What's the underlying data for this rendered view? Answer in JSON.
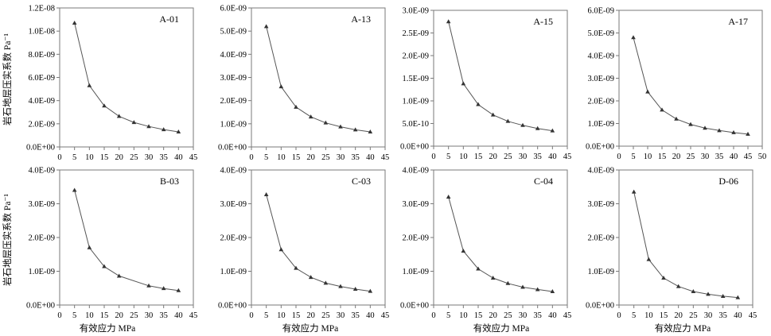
{
  "figure": {
    "ylabel": "岩石地层压实系数 Pa⁻¹",
    "xlabel": "有效应力 MPa"
  },
  "chart_data": [
    {
      "type": "line",
      "label": "A-01",
      "x": [
        5,
        10,
        15,
        20,
        25,
        30,
        35,
        40
      ],
      "y": [
        1.07e-08,
        5.3e-09,
        3.55e-09,
        2.65e-09,
        2.12e-09,
        1.77e-09,
        1.5e-09,
        1.3e-09
      ],
      "xlim": [
        0,
        45
      ],
      "xticks": [
        0,
        5,
        10,
        15,
        20,
        25,
        30,
        35,
        40,
        45
      ],
      "ylim": [
        0,
        1.2e-08
      ],
      "yticks": [
        0,
        2e-09,
        4e-09,
        6e-09,
        8e-09,
        1e-08,
        1.2e-08
      ],
      "ytick_labels": [
        "0.0E+00",
        "2.0E-09",
        "4.0E-09",
        "6.0E-09",
        "8.0E-09",
        "1.0E-08",
        "1.2E-08"
      ],
      "marker": "triangle",
      "color": "#555555"
    },
    {
      "type": "line",
      "label": "A-13",
      "x": [
        5,
        10,
        15,
        20,
        25,
        30,
        35,
        40
      ],
      "y": [
        5.2e-09,
        2.6e-09,
        1.72e-09,
        1.3e-09,
        1.04e-09,
        8.7e-10,
        7.4e-10,
        6.5e-10
      ],
      "xlim": [
        0,
        45
      ],
      "xticks": [
        0,
        5,
        10,
        15,
        20,
        25,
        30,
        35,
        40,
        45
      ],
      "ylim": [
        0,
        6e-09
      ],
      "yticks": [
        0,
        1e-09,
        2e-09,
        3e-09,
        4e-09,
        5e-09,
        6e-09
      ],
      "ytick_labels": [
        "0.0E+00",
        "1.0E-09",
        "2.0E-09",
        "3.0E-09",
        "4.0E-09",
        "5.0E-09",
        "6.0E-09"
      ],
      "marker": "triangle",
      "color": "#555555"
    },
    {
      "type": "line",
      "label": "A-15",
      "x": [
        5,
        10,
        15,
        20,
        25,
        30,
        35,
        40
      ],
      "y": [
        2.75e-09,
        1.38e-09,
        9.2e-10,
        6.9e-10,
        5.5e-10,
        4.6e-10,
        3.9e-10,
        3.4e-10
      ],
      "xlim": [
        0,
        45
      ],
      "xticks": [
        0,
        5,
        10,
        15,
        20,
        25,
        30,
        35,
        40,
        45
      ],
      "ylim": [
        0,
        3e-09
      ],
      "yticks": [
        0,
        5e-10,
        1e-09,
        1.5e-09,
        2e-09,
        2.5e-09,
        3e-09
      ],
      "ytick_labels": [
        "0.0E+00",
        "5.0E-10",
        "1.0E-09",
        "1.5E-09",
        "2.0E-09",
        "2.5E-09",
        "3.0E-09"
      ],
      "marker": "triangle",
      "color": "#555555"
    },
    {
      "type": "line",
      "label": "A-17",
      "x": [
        5,
        10,
        15,
        20,
        25,
        30,
        35,
        40,
        45
      ],
      "y": [
        4.8e-09,
        2.4e-09,
        1.6e-09,
        1.2e-09,
        9.6e-10,
        8e-10,
        6.9e-10,
        6e-10,
        5.3e-10
      ],
      "xlim": [
        0,
        50
      ],
      "xticks": [
        0,
        5,
        10,
        15,
        20,
        25,
        30,
        35,
        40,
        45,
        50
      ],
      "ylim": [
        0,
        6e-09
      ],
      "yticks": [
        0,
        1e-09,
        2e-09,
        3e-09,
        4e-09,
        5e-09,
        6e-09
      ],
      "ytick_labels": [
        "0.0E+00",
        "1.0E-09",
        "2.0E-09",
        "3.0E-09",
        "4.0E-09",
        "5.0E-09",
        "6.0E-09"
      ],
      "marker": "triangle",
      "color": "#555555"
    },
    {
      "type": "line",
      "label": "B-03",
      "x": [
        5,
        10,
        15,
        20,
        30,
        35,
        40
      ],
      "y": [
        3.4e-09,
        1.7e-09,
        1.14e-09,
        8.6e-10,
        5.7e-10,
        4.9e-10,
        4.3e-10
      ],
      "xlim": [
        0,
        45
      ],
      "xticks": [
        0,
        5,
        10,
        15,
        20,
        25,
        30,
        35,
        40,
        45
      ],
      "ylim": [
        0,
        4e-09
      ],
      "yticks": [
        0,
        1e-09,
        2e-09,
        3e-09,
        4e-09
      ],
      "ytick_labels": [
        "0.0E+00",
        "1.0E-09",
        "2.0E-09",
        "3.0E-09",
        "4.0E-09"
      ],
      "marker": "triangle",
      "color": "#555555"
    },
    {
      "type": "line",
      "label": "C-03",
      "x": [
        5,
        10,
        15,
        20,
        25,
        30,
        35,
        40
      ],
      "y": [
        3.27e-09,
        1.64e-09,
        1.09e-09,
        8.2e-10,
        6.5e-10,
        5.5e-10,
        4.7e-10,
        4.1e-10
      ],
      "xlim": [
        0,
        45
      ],
      "xticks": [
        0,
        5,
        10,
        15,
        20,
        25,
        30,
        35,
        40,
        45
      ],
      "ylim": [
        0,
        4e-09
      ],
      "yticks": [
        0,
        1e-09,
        2e-09,
        3e-09,
        4e-09
      ],
      "ytick_labels": [
        "0.0E+00",
        "1.0E-09",
        "2.0E-09",
        "3.0E-09",
        "4.0E-09"
      ],
      "marker": "triangle",
      "color": "#555555"
    },
    {
      "type": "line",
      "label": "C-04",
      "x": [
        5,
        10,
        15,
        20,
        25,
        30,
        35,
        40
      ],
      "y": [
        3.2e-09,
        1.6e-09,
        1.07e-09,
        8e-10,
        6.4e-10,
        5.3e-10,
        4.6e-10,
        4e-10
      ],
      "xlim": [
        0,
        45
      ],
      "xticks": [
        0,
        5,
        10,
        15,
        20,
        25,
        30,
        35,
        40,
        45
      ],
      "ylim": [
        0,
        4e-09
      ],
      "yticks": [
        0,
        1e-09,
        2e-09,
        3e-09,
        4e-09
      ],
      "ytick_labels": [
        "0.0E+00",
        "1.0E-09",
        "2.0E-09",
        "3.0E-09",
        "4.0E-09"
      ],
      "marker": "triangle",
      "color": "#555555"
    },
    {
      "type": "line",
      "label": "D-06",
      "x": [
        5,
        10,
        15,
        20,
        25,
        30,
        35,
        40
      ],
      "y": [
        3.35e-09,
        1.35e-09,
        8e-10,
        5.5e-10,
        4e-10,
        3.2e-10,
        2.6e-10,
        2.2e-10
      ],
      "xlim": [
        0,
        45
      ],
      "xticks": [
        0,
        5,
        10,
        15,
        20,
        25,
        30,
        35,
        40,
        45
      ],
      "ylim": [
        0,
        4e-09
      ],
      "yticks": [
        0,
        1e-09,
        2e-09,
        3e-09,
        4e-09
      ],
      "ytick_labels": [
        "0.0E+00",
        "1.0E-09",
        "2.0E-09",
        "3.0E-09",
        "4.0E-09"
      ],
      "marker": "triangle",
      "color": "#555555"
    }
  ]
}
